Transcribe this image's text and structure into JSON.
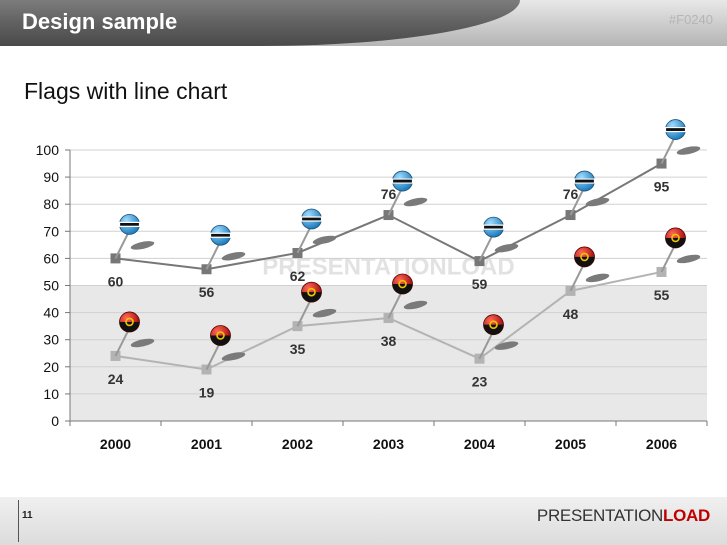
{
  "slide": {
    "title": "Design sample",
    "code": "#F0240",
    "subtitle": "Flags with line chart",
    "page_number": "11"
  },
  "logo": {
    "part1": "PRESENTATION",
    "part2": "LOAD"
  },
  "watermark": "PRESENTATIONLOAD",
  "colors": {
    "series1": "#777777",
    "series2": "#b3b3b3",
    "band": "#e8e8e8",
    "accent": "#c00000"
  },
  "chart_data": {
    "type": "line",
    "categories": [
      "2000",
      "2001",
      "2002",
      "2003",
      "2004",
      "2005",
      "2006"
    ],
    "ylim": [
      0,
      100
    ],
    "yticks": [
      0,
      10,
      20,
      30,
      40,
      50,
      60,
      70,
      80,
      90,
      100
    ],
    "title": "",
    "xlabel": "",
    "ylabel": "",
    "series": [
      {
        "values": [
          60,
          56,
          62,
          76,
          59,
          76,
          95
        ],
        "marker": "square",
        "flag_icon": "botswana-flag-pin-icon"
      },
      {
        "values": [
          24,
          19,
          35,
          38,
          23,
          48,
          55
        ],
        "marker": "square",
        "flag_icon": "angola-flag-pin-icon"
      }
    ]
  }
}
